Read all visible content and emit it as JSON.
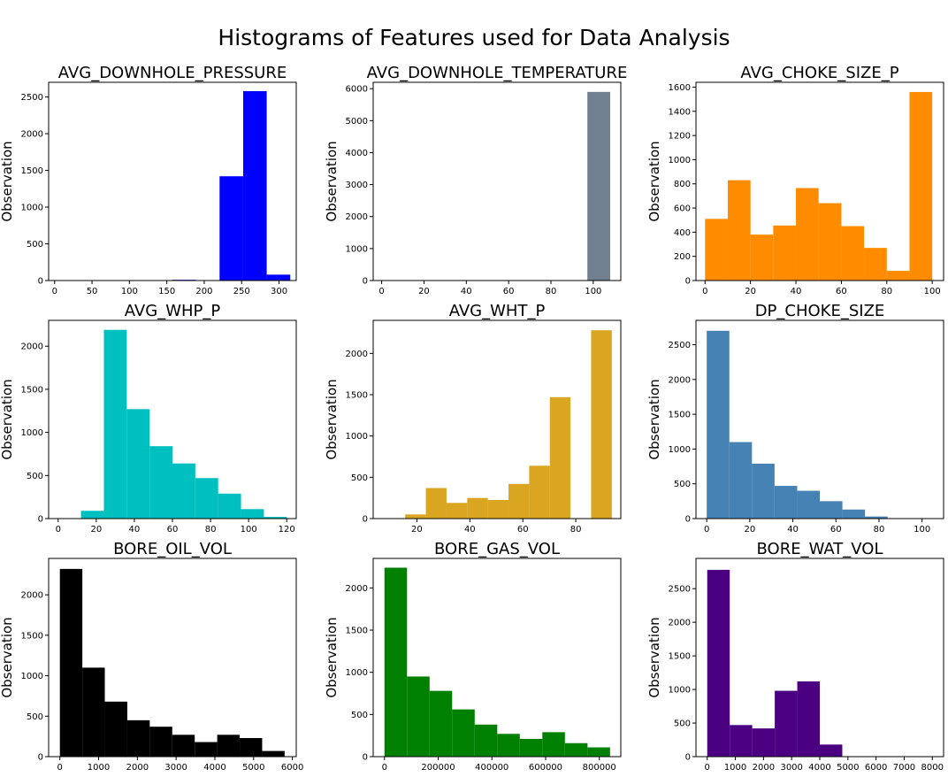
{
  "title": "Histograms of Features used for Data Analysis",
  "chart_data": [
    {
      "type": "bar",
      "title": "AVG_DOWNHOLE_PRESSURE",
      "ylabel": "Observation",
      "color": "#0000ff",
      "xlim": [
        -8,
        323
      ],
      "ylim": [
        0,
        2700
      ],
      "xticks": [
        0,
        50,
        100,
        150,
        200,
        250,
        300
      ],
      "yticks": [
        0,
        500,
        1000,
        1500,
        2000,
        2500
      ],
      "bins": [
        [
          0,
          31.5,
          0
        ],
        [
          31.5,
          63,
          0
        ],
        [
          63,
          94.5,
          0
        ],
        [
          94.5,
          126,
          0
        ],
        [
          126,
          157.5,
          0
        ],
        [
          157.5,
          189,
          10
        ],
        [
          189,
          220.5,
          0
        ],
        [
          220.5,
          252,
          1420
        ],
        [
          252,
          283.5,
          2580
        ],
        [
          283.5,
          315,
          80
        ]
      ]
    },
    {
      "type": "bar",
      "title": "AVG_DOWNHOLE_TEMPERATURE",
      "ylabel": "Observation",
      "color": "#708090",
      "xlim": [
        -4,
        113
      ],
      "ylim": [
        0,
        6200
      ],
      "xticks": [
        0,
        20,
        40,
        60,
        80,
        100
      ],
      "yticks": [
        0,
        1000,
        2000,
        3000,
        4000,
        5000,
        6000
      ],
      "bins": [
        [
          97.2,
          108,
          5900
        ]
      ]
    },
    {
      "type": "bar",
      "title": "AVG_CHOKE_SIZE_P",
      "ylabel": "Observation",
      "color": "#ff8c00",
      "xlim": [
        -4,
        105
      ],
      "ylim": [
        0,
        1640
      ],
      "xticks": [
        0,
        20,
        40,
        60,
        80,
        100
      ],
      "yticks": [
        0,
        200,
        400,
        600,
        800,
        1000,
        1200,
        1400,
        1600
      ],
      "bins": [
        [
          0,
          10,
          510
        ],
        [
          10,
          20,
          830
        ],
        [
          20,
          30,
          380
        ],
        [
          30,
          40,
          455
        ],
        [
          40,
          50,
          765
        ],
        [
          50,
          60,
          640
        ],
        [
          60,
          70,
          450
        ],
        [
          70,
          80,
          270
        ],
        [
          80,
          90,
          80
        ],
        [
          90,
          100,
          1560
        ]
      ]
    },
    {
      "type": "bar",
      "title": "AVG_WHP_P",
      "ylabel": "Observation",
      "color": "#00bfbf",
      "xlim": [
        -5,
        125
      ],
      "ylim": [
        0,
        2300
      ],
      "xticks": [
        0,
        20,
        40,
        60,
        80,
        100,
        120
      ],
      "yticks": [
        0,
        500,
        1000,
        1500,
        2000
      ],
      "bins": [
        [
          12,
          24,
          90
        ],
        [
          24,
          36,
          2190
        ],
        [
          36,
          48,
          1270
        ],
        [
          48,
          60,
          840
        ],
        [
          60,
          72,
          640
        ],
        [
          72,
          84,
          470
        ],
        [
          84,
          96,
          290
        ],
        [
          96,
          108,
          110
        ],
        [
          108,
          120,
          20
        ]
      ]
    },
    {
      "type": "bar",
      "title": "AVG_WHT_P",
      "ylabel": "Observation",
      "color": "#daa520",
      "xlim": [
        3.5,
        97
      ],
      "ylim": [
        0,
        2400
      ],
      "xticks": [
        20,
        40,
        60,
        80
      ],
      "yticks": [
        0,
        500,
        1000,
        1500,
        2000
      ],
      "bins": [
        [
          15.6,
          23.4,
          50
        ],
        [
          23.4,
          31.2,
          370
        ],
        [
          31.2,
          39,
          190
        ],
        [
          39,
          46.8,
          250
        ],
        [
          46.8,
          54.6,
          225
        ],
        [
          54.6,
          62.4,
          420
        ],
        [
          62.4,
          70.2,
          640
        ],
        [
          70.2,
          78,
          1470
        ],
        [
          78,
          85.8,
          0
        ],
        [
          85.8,
          93.6,
          2280
        ]
      ]
    },
    {
      "type": "bar",
      "title": "DP_CHOKE_SIZE",
      "ylabel": "Observation",
      "color": "#4682b4",
      "xlim": [
        -5,
        110
      ],
      "ylim": [
        0,
        2850
      ],
      "xticks": [
        0,
        20,
        40,
        60,
        80,
        100
      ],
      "yticks": [
        0,
        500,
        1000,
        1500,
        2000,
        2500
      ],
      "bins": [
        [
          0,
          10.5,
          2700
        ],
        [
          10.5,
          21,
          1100
        ],
        [
          21,
          31.5,
          790
        ],
        [
          31.5,
          42,
          470
        ],
        [
          42,
          52.5,
          400
        ],
        [
          52.5,
          63,
          250
        ],
        [
          63,
          73.5,
          130
        ],
        [
          73.5,
          84,
          30
        ],
        [
          84,
          94.5,
          0
        ],
        [
          94.5,
          105,
          5
        ]
      ]
    },
    {
      "type": "bar",
      "title": "BORE_OIL_VOL",
      "ylabel": "Observation",
      "color": "#000000",
      "xlim": [
        -290,
        6100
      ],
      "ylim": [
        0,
        2450
      ],
      "xticks": [
        0,
        1000,
        2000,
        3000,
        4000,
        5000,
        6000
      ],
      "yticks": [
        0,
        500,
        1000,
        1500,
        2000
      ],
      "bins": [
        [
          0,
          580,
          2320
        ],
        [
          580,
          1160,
          1100
        ],
        [
          1160,
          1740,
          680
        ],
        [
          1740,
          2320,
          450
        ],
        [
          2320,
          2900,
          370
        ],
        [
          2900,
          3480,
          270
        ],
        [
          3480,
          4060,
          180
        ],
        [
          4060,
          4640,
          270
        ],
        [
          4640,
          5220,
          230
        ],
        [
          5220,
          5800,
          70
        ]
      ]
    },
    {
      "type": "bar",
      "title": "BORE_GAS_VOL",
      "ylabel": "Observation",
      "color": "#008000",
      "xlim": [
        -42000,
        880000
      ],
      "ylim": [
        0,
        2350
      ],
      "xticks": [
        0,
        200000,
        400000,
        600000,
        800000
      ],
      "yticks": [
        0,
        500,
        1000,
        1500,
        2000
      ],
      "bins": [
        [
          0,
          84000,
          2240
        ],
        [
          84000,
          168000,
          950
        ],
        [
          168000,
          252000,
          780
        ],
        [
          252000,
          336000,
          560
        ],
        [
          336000,
          420000,
          380
        ],
        [
          420000,
          504000,
          270
        ],
        [
          504000,
          588000,
          210
        ],
        [
          588000,
          672000,
          290
        ],
        [
          672000,
          756000,
          160
        ],
        [
          756000,
          840000,
          110
        ]
      ]
    },
    {
      "type": "bar",
      "title": "BORE_WAT_VOL",
      "ylabel": "Observation",
      "color": "#4b0082",
      "xlim": [
        -400,
        8400
      ],
      "ylim": [
        0,
        2950
      ],
      "xticks": [
        0,
        1000,
        2000,
        3000,
        4000,
        5000,
        6000,
        7000,
        8000
      ],
      "yticks": [
        0,
        500,
        1000,
        1500,
        2000,
        2500
      ],
      "bins": [
        [
          0,
          800,
          2780
        ],
        [
          800,
          1600,
          470
        ],
        [
          1600,
          2400,
          420
        ],
        [
          2400,
          3200,
          980
        ],
        [
          3200,
          4000,
          1120
        ],
        [
          4000,
          4800,
          180
        ],
        [
          4800,
          5600,
          0
        ],
        [
          5600,
          6400,
          0
        ],
        [
          6400,
          7200,
          0
        ],
        [
          7200,
          8000,
          0
        ]
      ]
    }
  ]
}
